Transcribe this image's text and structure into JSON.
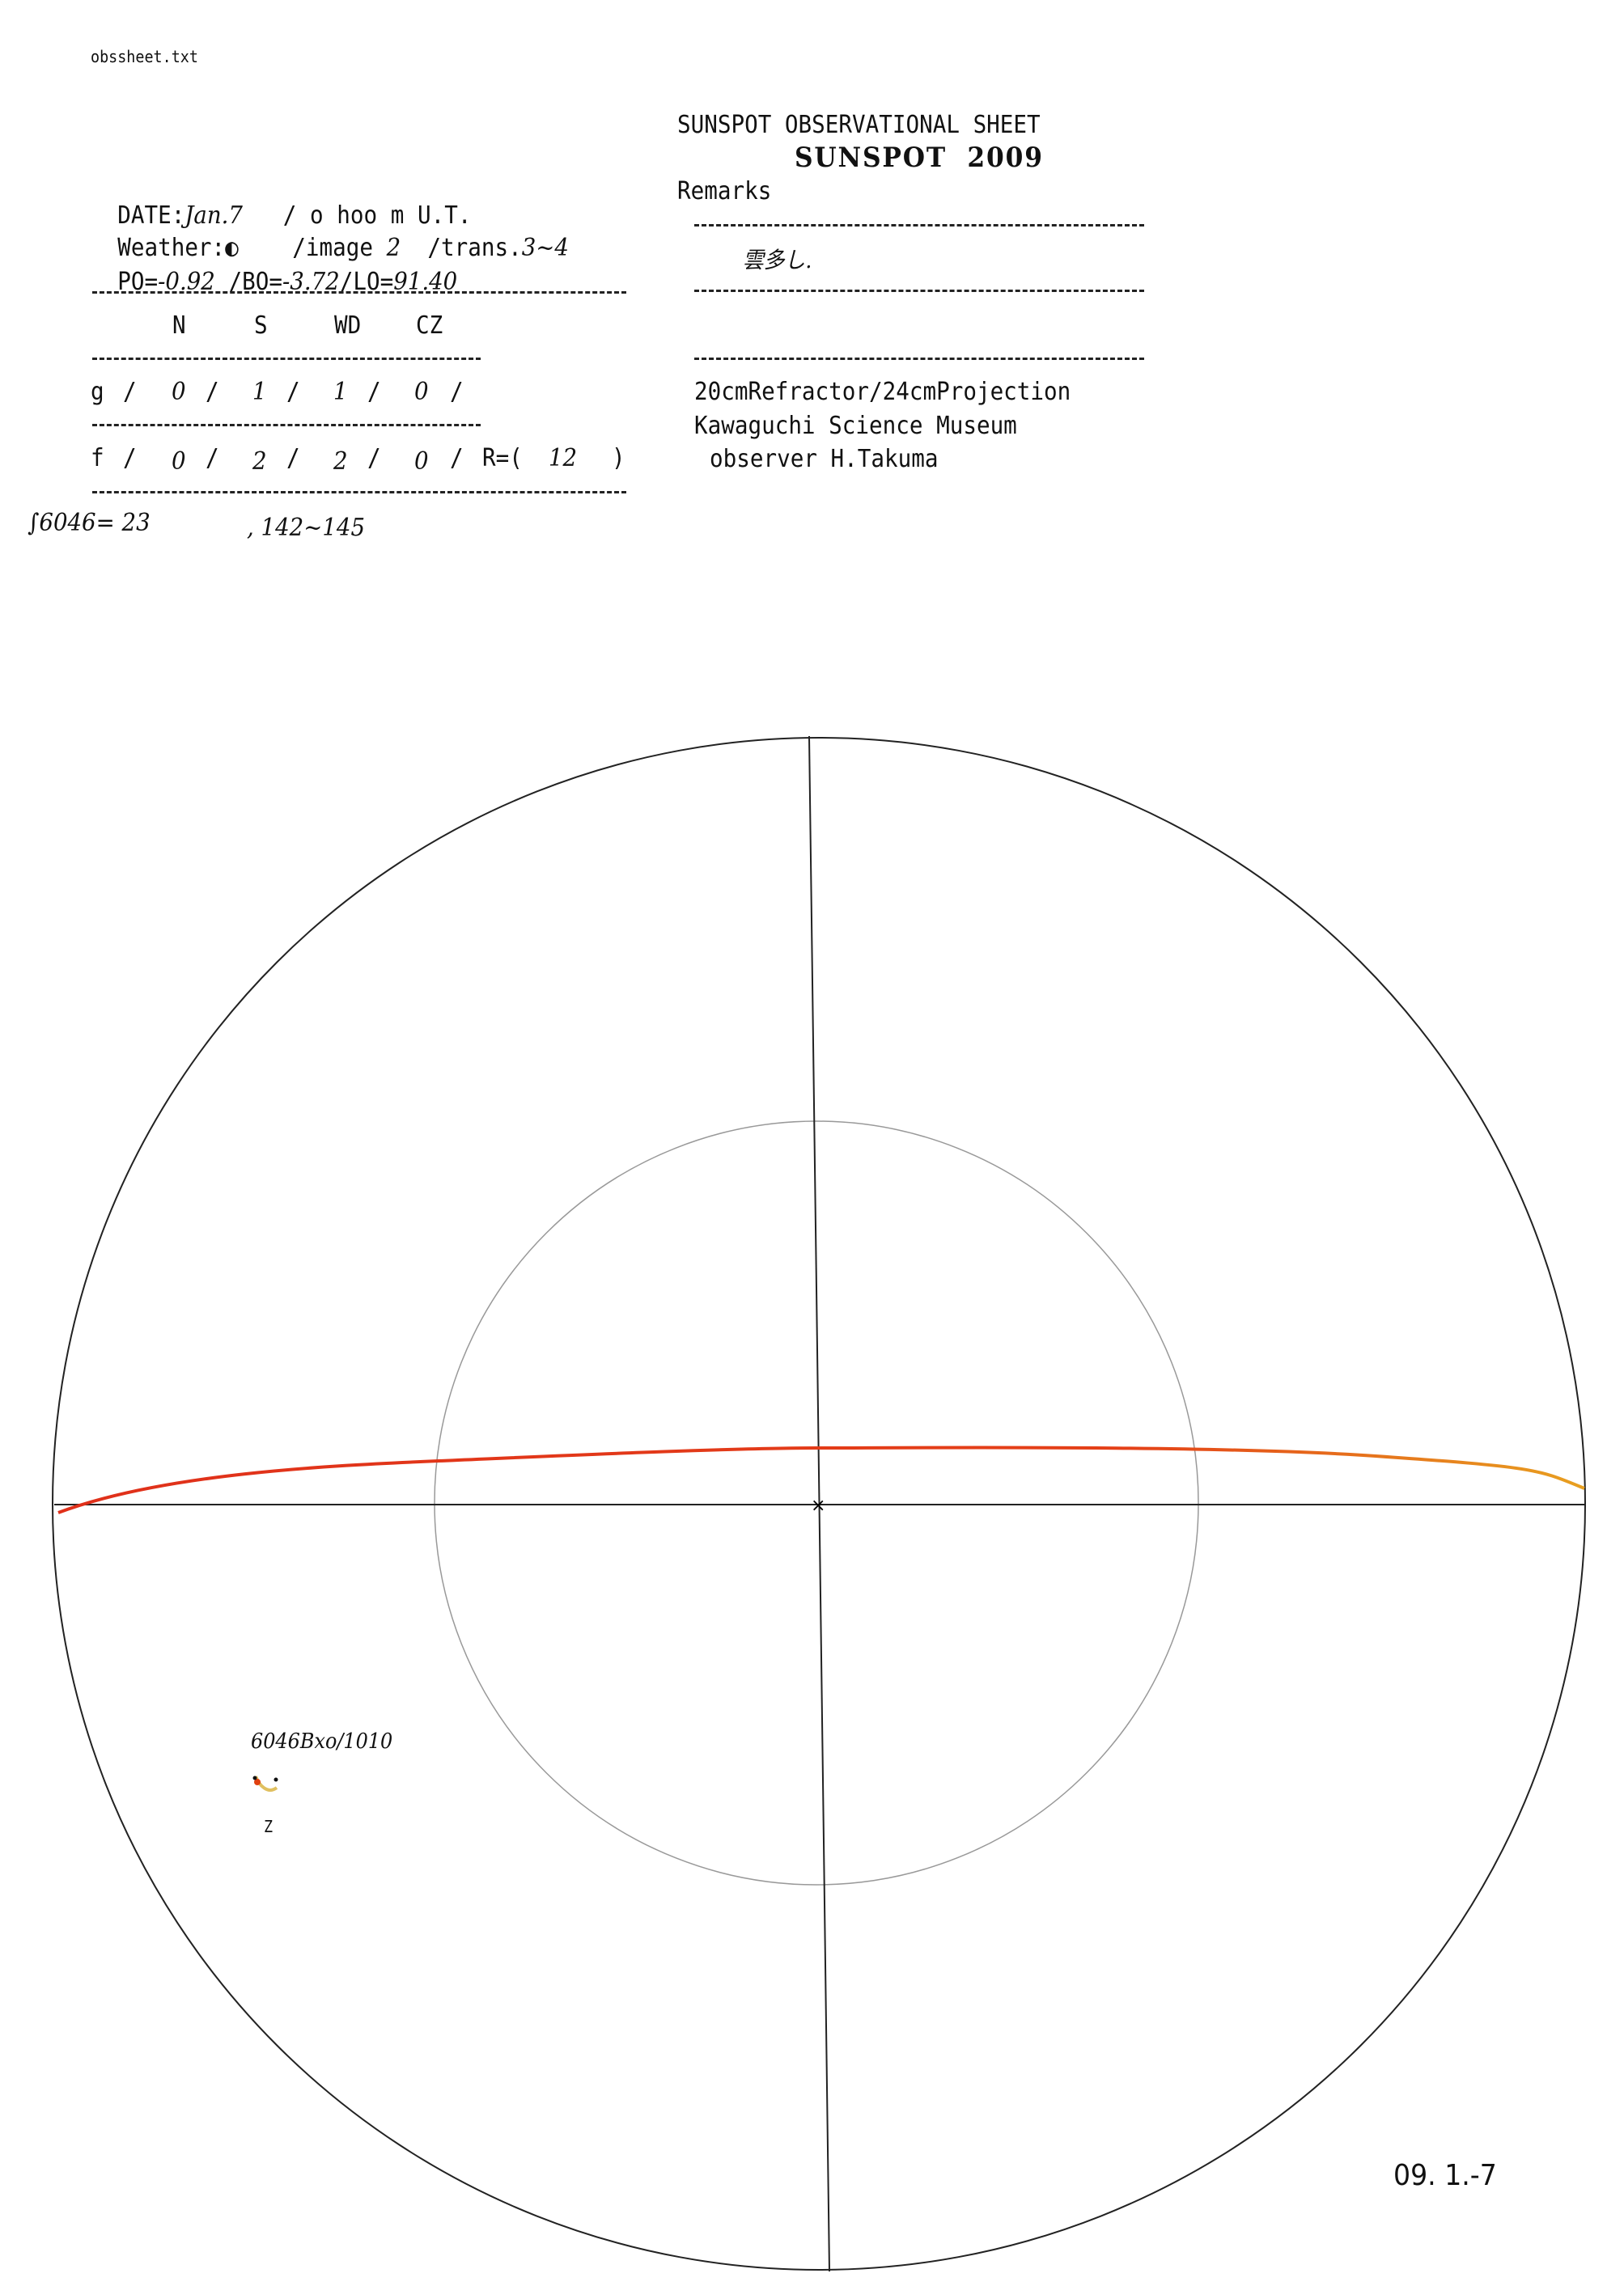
{
  "filename": "obssheet.txt",
  "sheet_title": "SUNSPOT OBSERVATIONAL SHEET",
  "stamp": "SUNSPOT  2009",
  "date_line": {
    "label": "DATE:",
    "date": "Jan.7",
    "time": "/ o hoo m U.T."
  },
  "weather_line": {
    "label": "Weather:",
    "weather": "◐",
    "image_label": "/image",
    "image": "2",
    "trans_label": "/trans.",
    "trans": "3~4"
  },
  "ephemeris": {
    "p0_label": "PO=",
    "p0": "-0.92",
    "b0_label": "/BO=",
    "b0": "-3.72",
    "l0_label": "/LO=",
    "l0": "91.40"
  },
  "table": {
    "headers": [
      "N",
      "S",
      "WD",
      "CZ"
    ],
    "rows": [
      {
        "label": "g",
        "values": [
          "0",
          "1",
          "1",
          "0"
        ]
      },
      {
        "label": "f",
        "values": [
          "0",
          "2",
          "2",
          "0"
        ]
      }
    ],
    "r_label": "R=(",
    "r_value": "12",
    "r_close": ")"
  },
  "note": "∫6046= 23",
  "note2": ", 142~145",
  "remarks": {
    "label": "Remarks",
    "text": "雲多し."
  },
  "instrument": "20cmRefractor/24cmProjection",
  "institution": "Kawaguchi Science Museum",
  "observer": "observer H.Takuma",
  "spot_group": {
    "label": "6046Bxo/1010",
    "zone": "Z"
  },
  "footer_date": "09. 1.-7",
  "colors": {
    "ink": "#111111",
    "curve_start": "#e0301a",
    "curve_end": "#e8a020",
    "spot": "#e04010"
  }
}
